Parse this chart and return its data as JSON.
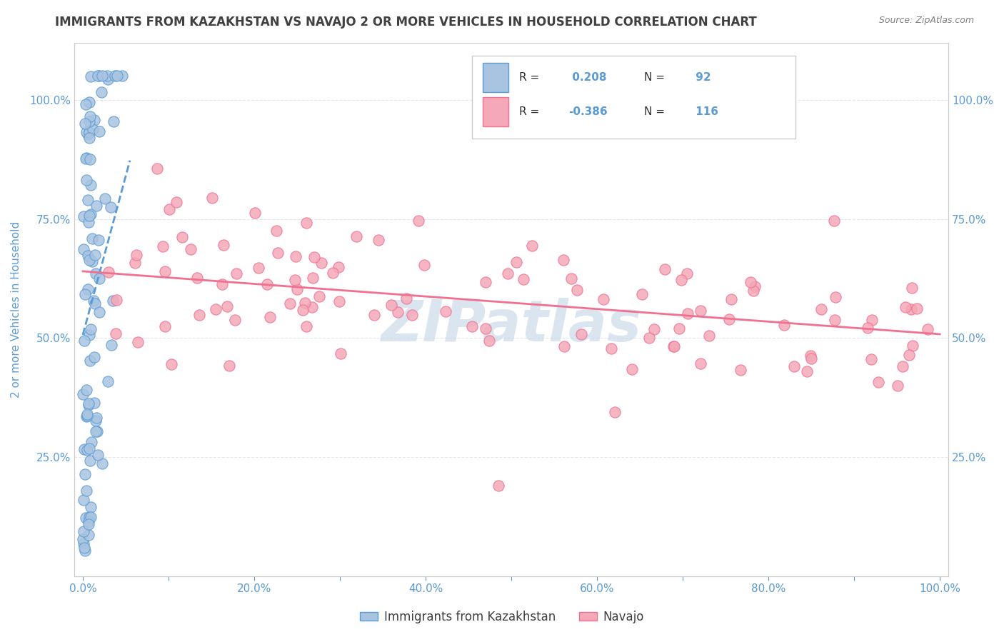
{
  "title": "IMMIGRANTS FROM KAZAKHSTAN VS NAVAJO 2 OR MORE VEHICLES IN HOUSEHOLD CORRELATION CHART",
  "source": "Source: ZipAtlas.com",
  "ylabel": "2 or more Vehicles in Household",
  "x_tick_labels": [
    "0.0%",
    "",
    "20.0%",
    "",
    "40.0%",
    "",
    "60.0%",
    "",
    "80.0%",
    "",
    "100.0%"
  ],
  "x_tick_vals": [
    0.0,
    0.1,
    0.2,
    0.3,
    0.4,
    0.5,
    0.6,
    0.7,
    0.8,
    0.9,
    1.0
  ],
  "y_tick_labels": [
    "25.0%",
    "50.0%",
    "75.0%",
    "100.0%"
  ],
  "y_tick_vals": [
    0.25,
    0.5,
    0.75,
    1.0
  ],
  "legend_labels": [
    "Immigrants from Kazakhstan",
    "Navajo"
  ],
  "blue_R": 0.208,
  "blue_N": 92,
  "pink_R": -0.386,
  "pink_N": 116,
  "blue_color": "#a8c4e0",
  "pink_color": "#f4a8b8",
  "blue_line_color": "#5b9bd5",
  "pink_line_color": "#f07090",
  "title_color": "#404040",
  "source_color": "#808080",
  "axis_color": "#5b9bd5",
  "watermark_color": "#c8d8e8",
  "grid_color": "#dde8f0",
  "background_color": "#ffffff",
  "ylim": [
    0.0,
    1.12
  ],
  "xlim": [
    -0.01,
    1.01
  ]
}
